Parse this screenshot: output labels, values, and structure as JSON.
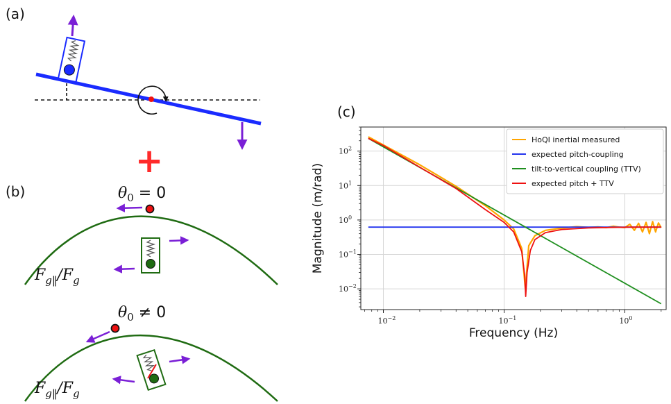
{
  "panel_a": {
    "label": "(a)"
  },
  "plus_sign": "+",
  "panel_b": {
    "label": "(b)",
    "top_equation": "θ0 = 0",
    "bottom_equation": "θ0 ≠ 0",
    "force_ratio_top": "Fg‖/Fg",
    "force_ratio_bottom": "Fg‖/Fg"
  },
  "panel_c": {
    "label": "(c)"
  },
  "colors": {
    "beam": "#1a2bff",
    "arrow": "#7a1fd6",
    "plus": "#ff2a2a",
    "curve": "#1f6b12",
    "measured": "#ffa500",
    "pitch": "#2233ee",
    "ttv": "#1f8f1f",
    "sum": "#ee1111"
  },
  "chart_data": {
    "type": "line",
    "title": "",
    "xlabel": "Frequency (Hz)",
    "ylabel": "Magnitude (m/rad)",
    "xscale": "log",
    "yscale": "log",
    "xlim": [
      0.0065,
      2.2
    ],
    "ylim": [
      0.0025,
      500
    ],
    "grid": true,
    "legend_position": "top-right",
    "x_ticks": [
      {
        "value": 0.01,
        "base": "10",
        "exp": "−2"
      },
      {
        "value": 0.1,
        "base": "10",
        "exp": "−1"
      },
      {
        "value": 1,
        "base": "10",
        "exp": "0"
      }
    ],
    "y_ticks": [
      {
        "value": 100,
        "base": "10",
        "exp": "2"
      },
      {
        "value": 10,
        "base": "10",
        "exp": "1"
      },
      {
        "value": 1,
        "base": "10",
        "exp": "0"
      },
      {
        "value": 0.1,
        "base": "10",
        "exp": "−1"
      },
      {
        "value": 0.01,
        "base": "10",
        "exp": "−2"
      }
    ],
    "series": [
      {
        "name": "HoQI inertial measured",
        "color": "#ffa500",
        "x": [
          0.0075,
          0.01,
          0.02,
          0.04,
          0.07,
          0.1,
          0.12,
          0.14,
          0.15,
          0.16,
          0.18,
          0.22,
          0.3,
          0.4,
          0.5,
          0.6,
          0.7,
          0.8,
          0.9,
          1.0,
          1.1,
          1.2,
          1.3,
          1.4,
          1.5,
          1.6,
          1.7,
          1.8,
          1.9,
          2.0
        ],
        "y": [
          260,
          150,
          40,
          9.5,
          2.6,
          1.0,
          0.55,
          0.15,
          0.01,
          0.18,
          0.35,
          0.5,
          0.58,
          0.64,
          0.61,
          0.63,
          0.6,
          0.66,
          0.62,
          0.6,
          0.75,
          0.5,
          0.8,
          0.45,
          0.85,
          0.4,
          0.9,
          0.45,
          0.82,
          0.6
        ]
      },
      {
        "name": "expected pitch-coupling",
        "color": "#2233ee",
        "x": [
          0.0075,
          2.0
        ],
        "y": [
          0.62,
          0.62
        ]
      },
      {
        "name": "tilt-to-vertical coupling (TTV)",
        "color": "#1f8f1f",
        "x": [
          0.0075,
          2.0
        ],
        "y": [
          235,
          0.0037
        ]
      },
      {
        "name": "expected pitch + TTV",
        "color": "#ee1111",
        "x": [
          0.0075,
          0.01,
          0.02,
          0.04,
          0.07,
          0.1,
          0.12,
          0.14,
          0.148,
          0.151,
          0.155,
          0.165,
          0.18,
          0.22,
          0.3,
          0.5,
          0.8,
          1.2,
          2.0
        ],
        "y": [
          235,
          145,
          34,
          8.2,
          2.0,
          0.85,
          0.45,
          0.12,
          0.025,
          0.006,
          0.03,
          0.13,
          0.27,
          0.43,
          0.53,
          0.59,
          0.61,
          0.62,
          0.62
        ]
      }
    ]
  }
}
